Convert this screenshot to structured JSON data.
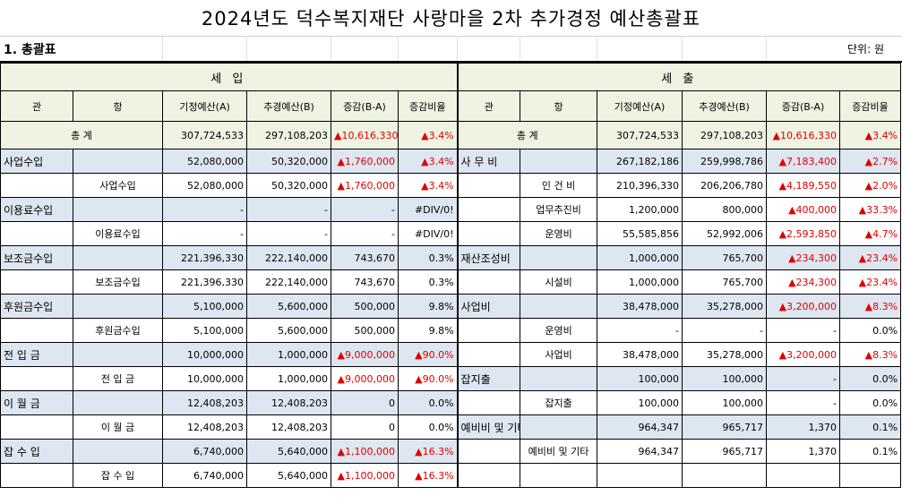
{
  "title": "2024년도 덕수복지재단 사랑마을 2차 추가경정 예산총괄표",
  "section": "1. 총괄표",
  "unit": "단위: 원",
  "headers": {
    "income": "세  입",
    "expense": "세  출",
    "gwan": "관",
    "hang": "항",
    "col_a": "기정예산(A)",
    "col_b": "추경예산(B)",
    "col_diff": "증감(B-A)",
    "col_rate": "증감비율"
  },
  "total_label": "총   계",
  "income_total": {
    "a": "307,724,533",
    "b": "297,108,203",
    "diff": "▲10,616,330",
    "rate": "▲3.4%"
  },
  "expense_total": {
    "a": "307,724,533",
    "b": "297,108,203",
    "diff": "▲10,616,330",
    "rate": "▲3.4%"
  },
  "rows": [
    {
      "income": {
        "gwan": "사업수입",
        "hang": "",
        "a": "52,080,000",
        "b": "50,320,000",
        "diff": "▲1,760,000",
        "rate": "▲3.4%"
      },
      "expense": {
        "gwan": "사 무 비",
        "hang": "",
        "a": "267,182,186",
        "b": "259,998,786",
        "diff": "▲7,183,400",
        "rate": "▲2.7%"
      }
    },
    {
      "income": {
        "gwan": "",
        "hang": "사업수입",
        "a": "52,080,000",
        "b": "50,320,000",
        "diff": "▲1,760,000",
        "rate": "▲3.4%"
      },
      "expense": {
        "gwan": "",
        "hang": "인 건 비",
        "a": "210,396,330",
        "b": "206,206,780",
        "diff": "▲4,189,550",
        "rate": "▲2.0%"
      }
    },
    {
      "income": {
        "gwan": "이용료수입",
        "hang": "",
        "a": "-",
        "b": "-",
        "diff": "-",
        "rate": "#DIV/0!"
      },
      "expense": {
        "gwan": "",
        "hang": "업무추진비",
        "a": "1,200,000",
        "b": "800,000",
        "diff": "▲400,000",
        "rate": "▲33.3%"
      }
    },
    {
      "income": {
        "gwan": "",
        "hang": "이용료수입",
        "a": "-",
        "b": "-",
        "diff": "-",
        "rate": "#DIV/0!"
      },
      "expense": {
        "gwan": "",
        "hang": "운영비",
        "a": "55,585,856",
        "b": "52,992,006",
        "diff": "▲2,593,850",
        "rate": "▲4.7%"
      }
    },
    {
      "income": {
        "gwan": "보조금수입",
        "hang": "",
        "a": "221,396,330",
        "b": "222,140,000",
        "diff": "743,670",
        "rate": "0.3%"
      },
      "expense": {
        "gwan": "재산조성비",
        "hang": "",
        "a": "1,000,000",
        "b": "765,700",
        "diff": "▲234,300",
        "rate": "▲23.4%"
      }
    },
    {
      "income": {
        "gwan": "",
        "hang": "보조금수입",
        "a": "221,396,330",
        "b": "222,140,000",
        "diff": "743,670",
        "rate": "0.3%"
      },
      "expense": {
        "gwan": "",
        "hang": "시설비",
        "a": "1,000,000",
        "b": "765,700",
        "diff": "▲234,300",
        "rate": "▲23.4%"
      }
    },
    {
      "income": {
        "gwan": "후원금수입",
        "hang": "",
        "a": "5,100,000",
        "b": "5,600,000",
        "diff": "500,000",
        "rate": "9.8%"
      },
      "expense": {
        "gwan": "사업비",
        "hang": "",
        "a": "38,478,000",
        "b": "35,278,000",
        "diff": "▲3,200,000",
        "rate": "▲8.3%"
      }
    },
    {
      "income": {
        "gwan": "",
        "hang": "후원금수입",
        "a": "5,100,000",
        "b": "5,600,000",
        "diff": "500,000",
        "rate": "9.8%"
      },
      "expense": {
        "gwan": "",
        "hang": "운영비",
        "a": "-",
        "b": "-",
        "diff": "-",
        "rate": "0.0%"
      }
    },
    {
      "income": {
        "gwan": "전 입 금",
        "hang": "",
        "a": "10,000,000",
        "b": "1,000,000",
        "diff": "▲9,000,000",
        "rate": "▲90.0%"
      },
      "expense": {
        "gwan": "",
        "hang": "사업비",
        "a": "38,478,000",
        "b": "35,278,000",
        "diff": "▲3,200,000",
        "rate": "▲8.3%"
      }
    },
    {
      "income": {
        "gwan": "",
        "hang": "전 입 금",
        "a": "10,000,000",
        "b": "1,000,000",
        "diff": "▲9,000,000",
        "rate": "▲90.0%"
      },
      "expense": {
        "gwan": "잡지출",
        "hang": "",
        "a": "100,000",
        "b": "100,000",
        "diff": "-",
        "rate": "0.0%"
      }
    },
    {
      "income": {
        "gwan": "이 월 금",
        "hang": "",
        "a": "12,408,203",
        "b": "12,408,203",
        "diff": "0",
        "rate": "0.0%"
      },
      "expense": {
        "gwan": "",
        "hang": "잡지출",
        "a": "100,000",
        "b": "100,000",
        "diff": "-",
        "rate": "0.0%"
      }
    },
    {
      "income": {
        "gwan": "",
        "hang": "이 월 금",
        "a": "12,408,203",
        "b": "12,408,203",
        "diff": "0",
        "rate": "0.0%"
      },
      "expense": {
        "gwan": "예비비 및 기타",
        "hang": "",
        "a": "964,347",
        "b": "965,717",
        "diff": "1,370",
        "rate": "0.1%"
      }
    },
    {
      "income": {
        "gwan": "잡 수 입",
        "hang": "",
        "a": "6,740,000",
        "b": "5,640,000",
        "diff": "▲1,100,000",
        "rate": "▲16.3%"
      },
      "expense": {
        "gwan": "",
        "hang": "예비비 및 기타",
        "a": "964,347",
        "b": "965,717",
        "diff": "1,370",
        "rate": "0.1%"
      }
    },
    {
      "income": {
        "gwan": "",
        "hang": "잡 수 입",
        "a": "6,740,000",
        "b": "5,640,000",
        "diff": "▲1,100,000",
        "rate": "▲16.3%"
      },
      "expense": {
        "gwan": "",
        "hang": "",
        "a": "",
        "b": "",
        "diff": "",
        "rate": ""
      }
    }
  ]
}
